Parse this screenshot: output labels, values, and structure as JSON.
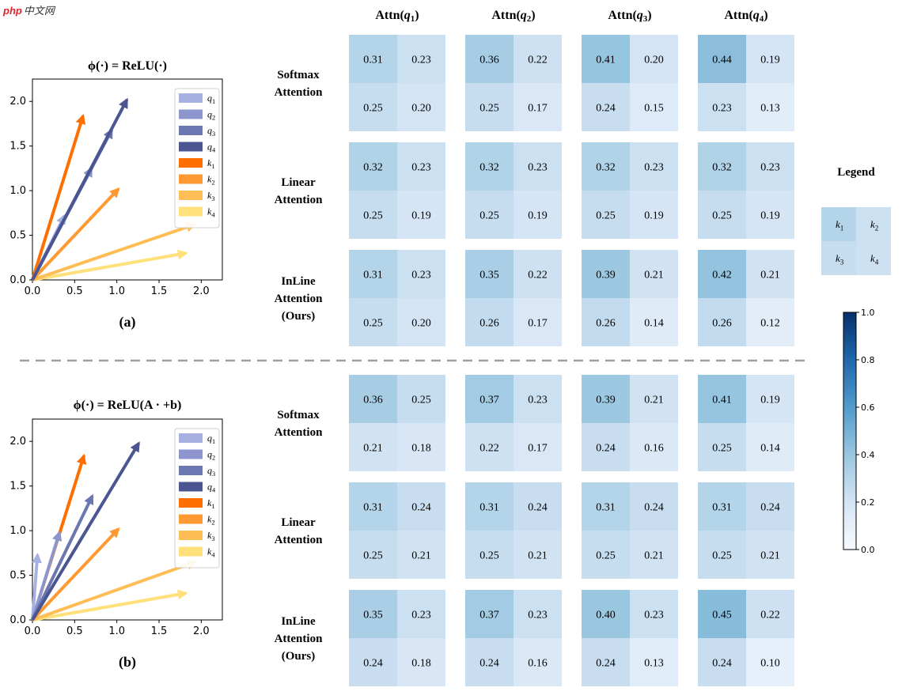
{
  "watermark": {
    "brand": "php",
    "suffix": "中文网"
  },
  "chart_data": [
    {
      "type": "vector_plot",
      "panel_label": "(a)",
      "title": "ϕ(·) = ReLU(·)",
      "xticks": [
        "0.0",
        "0.5",
        "1.0",
        "1.5",
        "2.0"
      ],
      "yticks": [
        "0.0",
        "0.5",
        "1.0",
        "1.5",
        "2.0"
      ],
      "xlim": [
        0,
        2.25
      ],
      "ylim": [
        0,
        2.25
      ],
      "legend": [
        "q1",
        "q2",
        "q3",
        "q4",
        "k1",
        "k2",
        "k3",
        "k4"
      ],
      "vectors": [
        {
          "name": "q1",
          "x": 0.38,
          "y": 0.72,
          "color": "#a6b1e1"
        },
        {
          "name": "q2",
          "x": 0.7,
          "y": 1.25,
          "color": "#8d96cc"
        },
        {
          "name": "q3",
          "x": 0.94,
          "y": 1.68,
          "color": "#6a77b0"
        },
        {
          "name": "q4",
          "x": 1.12,
          "y": 2.02,
          "color": "#4b5592"
        },
        {
          "name": "k1",
          "x": 0.6,
          "y": 1.84,
          "color": "#ff6f00"
        },
        {
          "name": "k2",
          "x": 1.02,
          "y": 1.02,
          "color": "#ff9a33"
        },
        {
          "name": "k3",
          "x": 1.92,
          "y": 0.62,
          "color": "#ffbe55"
        },
        {
          "name": "k4",
          "x": 1.82,
          "y": 0.3,
          "color": "#ffe07a"
        }
      ]
    },
    {
      "type": "vector_plot",
      "panel_label": "(b)",
      "title": "ϕ(·) = ReLU(A · +b)",
      "xticks": [
        "0.0",
        "0.5",
        "1.0",
        "1.5",
        "2.0"
      ],
      "yticks": [
        "0.0",
        "0.5",
        "1.0",
        "1.5",
        "2.0"
      ],
      "xlim": [
        0,
        2.25
      ],
      "ylim": [
        0,
        2.25
      ],
      "legend": [
        "q1",
        "q2",
        "q3",
        "q4",
        "k1",
        "k2",
        "k3",
        "k4"
      ],
      "vectors": [
        {
          "name": "q1",
          "x": 0.06,
          "y": 0.73,
          "color": "#a6b1e1"
        },
        {
          "name": "q2",
          "x": 0.32,
          "y": 0.98,
          "color": "#8d96cc"
        },
        {
          "name": "q3",
          "x": 0.71,
          "y": 1.39,
          "color": "#6a77b0"
        },
        {
          "name": "q4",
          "x": 1.26,
          "y": 1.98,
          "color": "#4b5592"
        },
        {
          "name": "k1",
          "x": 0.61,
          "y": 1.84,
          "color": "#ff6f00"
        },
        {
          "name": "k2",
          "x": 1.02,
          "y": 1.02,
          "color": "#ff9a33"
        },
        {
          "name": "k3",
          "x": 1.93,
          "y": 0.65,
          "color": "#ffbe55"
        },
        {
          "name": "k4",
          "x": 1.82,
          "y": 0.3,
          "color": "#ffe07a"
        }
      ]
    },
    {
      "type": "heatmap",
      "columns": [
        "q1",
        "q2",
        "q3",
        "q4"
      ],
      "vmin": 0,
      "vmax": 1,
      "colorbar_ticks": [
        "0.0",
        "0.2",
        "0.4",
        "0.6",
        "0.8",
        "1.0"
      ],
      "groups": [
        {
          "rows": [
            {
              "label": [
                "Softmax",
                "Attention"
              ],
              "cells": [
                [
                  "0.31",
                  "0.23",
                  "0.25",
                  "0.20"
                ],
                [
                  "0.36",
                  "0.22",
                  "0.25",
                  "0.17"
                ],
                [
                  "0.41",
                  "0.20",
                  "0.24",
                  "0.15"
                ],
                [
                  "0.44",
                  "0.19",
                  "0.23",
                  "0.13"
                ]
              ]
            },
            {
              "label": [
                "Linear",
                "Attention"
              ],
              "cells": [
                [
                  "0.32",
                  "0.23",
                  "0.25",
                  "0.19"
                ],
                [
                  "0.32",
                  "0.23",
                  "0.25",
                  "0.19"
                ],
                [
                  "0.32",
                  "0.23",
                  "0.25",
                  "0.19"
                ],
                [
                  "0.32",
                  "0.23",
                  "0.25",
                  "0.19"
                ]
              ]
            },
            {
              "label": [
                "InLine",
                "Attention",
                "(Ours)"
              ],
              "cells": [
                [
                  "0.31",
                  "0.23",
                  "0.25",
                  "0.20"
                ],
                [
                  "0.35",
                  "0.22",
                  "0.26",
                  "0.17"
                ],
                [
                  "0.39",
                  "0.21",
                  "0.26",
                  "0.14"
                ],
                [
                  "0.42",
                  "0.21",
                  "0.26",
                  "0.12"
                ]
              ]
            }
          ]
        },
        {
          "rows": [
            {
              "label": [
                "Softmax",
                "Attention"
              ],
              "cells": [
                [
                  "0.36",
                  "0.25",
                  "0.21",
                  "0.18"
                ],
                [
                  "0.37",
                  "0.23",
                  "0.22",
                  "0.17"
                ],
                [
                  "0.39",
                  "0.21",
                  "0.24",
                  "0.16"
                ],
                [
                  "0.41",
                  "0.19",
                  "0.25",
                  "0.14"
                ]
              ]
            },
            {
              "label": [
                "Linear",
                "Attention"
              ],
              "cells": [
                [
                  "0.31",
                  "0.24",
                  "0.25",
                  "0.21"
                ],
                [
                  "0.31",
                  "0.24",
                  "0.25",
                  "0.21"
                ],
                [
                  "0.31",
                  "0.24",
                  "0.25",
                  "0.21"
                ],
                [
                  "0.31",
                  "0.24",
                  "0.25",
                  "0.21"
                ]
              ]
            },
            {
              "label": [
                "InLine",
                "Attention",
                "(Ours)"
              ],
              "cells": [
                [
                  "0.35",
                  "0.23",
                  "0.24",
                  "0.18"
                ],
                [
                  "0.37",
                  "0.23",
                  "0.24",
                  "0.16"
                ],
                [
                  "0.40",
                  "0.23",
                  "0.24",
                  "0.13"
                ],
                [
                  "0.45",
                  "0.22",
                  "0.24",
                  "0.10"
                ]
              ]
            }
          ]
        }
      ],
      "legend_box": {
        "title": "Legend",
        "cells": [
          "k1",
          "k2",
          "k3",
          "k4"
        ]
      }
    }
  ]
}
